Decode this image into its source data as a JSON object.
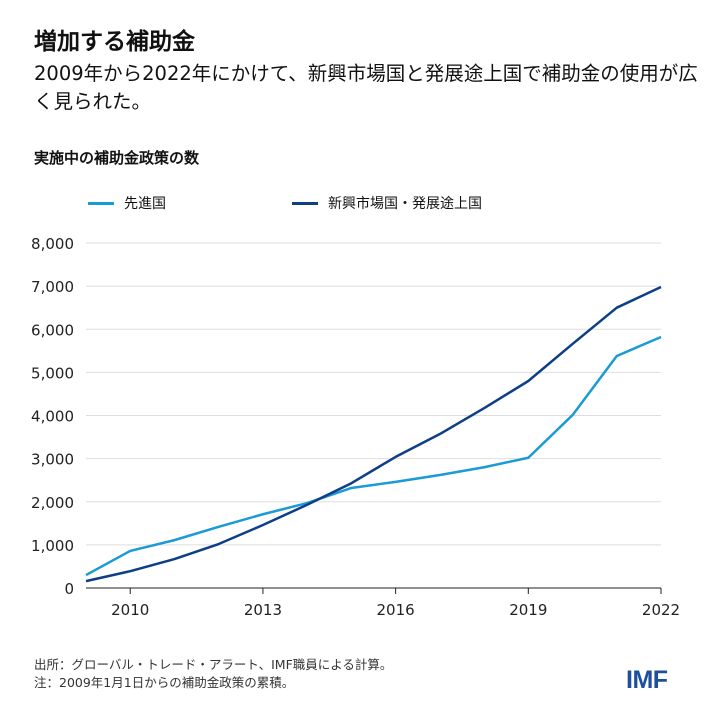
{
  "title": "増加する補助金",
  "subtitle": "2009年から2022年にかけて、新興市場国と発展途上国で補助金の使用が広く見られた。",
  "source": "出所：グローバル・トレード・アラート、IMF職員による計算。",
  "note": "注：2009年1月1日からの補助金政策の累積。",
  "logo": "IMF",
  "chart_data": {
    "type": "line",
    "title": "増加する補助金",
    "ylabel": "実施中の補助金政策の数",
    "xlabel": "",
    "x": [
      2009,
      2010,
      2011,
      2012,
      2013,
      2014,
      2015,
      2016,
      2017,
      2018,
      2019,
      2020,
      2021,
      2022
    ],
    "xlim": [
      2009,
      2022
    ],
    "ylim": [
      0,
      8000
    ],
    "xticks": [
      "2010",
      "2013",
      "2016",
      "2019",
      "2022"
    ],
    "yticks": [
      "0",
      "1,000",
      "2,000",
      "3,000",
      "4,000",
      "5,000",
      "6,000",
      "7,000",
      "8,000"
    ],
    "grid": true,
    "legend": "top-left",
    "series": [
      {
        "name": "先進国",
        "color": "#1a9ad6",
        "values": [
          300,
          860,
          1110,
          1420,
          1710,
          1970,
          2320,
          2460,
          2620,
          2800,
          3020,
          4010,
          5380,
          5820
        ]
      },
      {
        "name": "新興市場国・発展途上国",
        "color": "#0d3f87",
        "values": [
          160,
          390,
          670,
          1020,
          1460,
          1930,
          2430,
          3040,
          3570,
          4170,
          4800,
          5660,
          6500,
          6980
        ]
      }
    ]
  }
}
